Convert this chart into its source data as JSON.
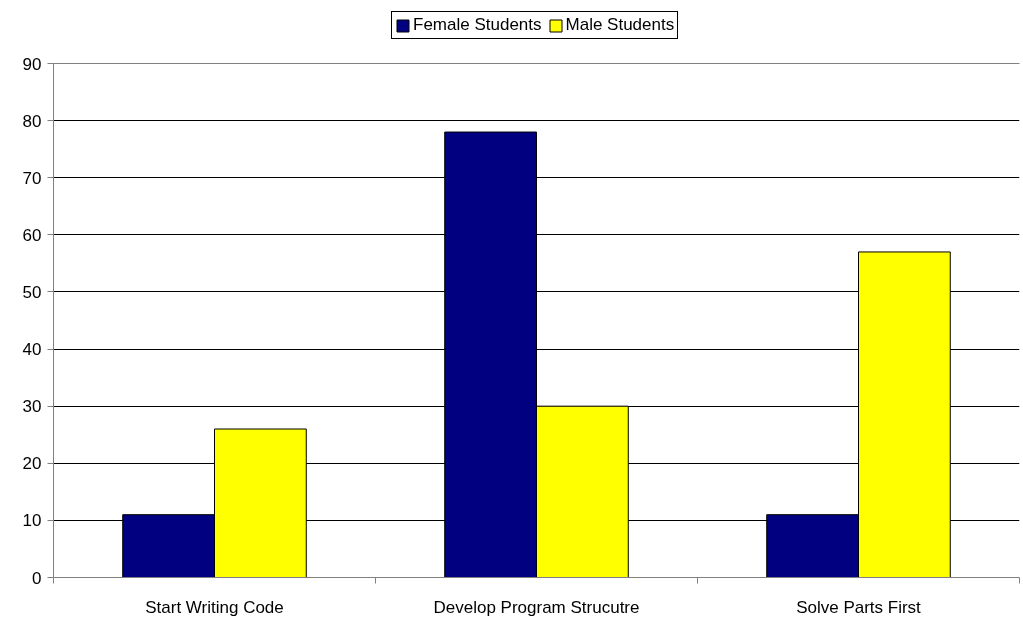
{
  "chart_data": {
    "type": "bar",
    "categories": [
      "Start Writing Code",
      "Develop Program Strucutre",
      "Solve Parts First"
    ],
    "series": [
      {
        "name": "Female Students",
        "color": "#000080",
        "values": [
          11,
          78,
          11
        ]
      },
      {
        "name": "Male Students",
        "color": "#ffff00",
        "values": [
          26,
          30,
          57
        ]
      }
    ],
    "ylim": [
      0,
      90
    ],
    "yticks": [
      0,
      10,
      20,
      30,
      40,
      50,
      60,
      70,
      80,
      90
    ],
    "grid": "y",
    "legend": "top"
  }
}
